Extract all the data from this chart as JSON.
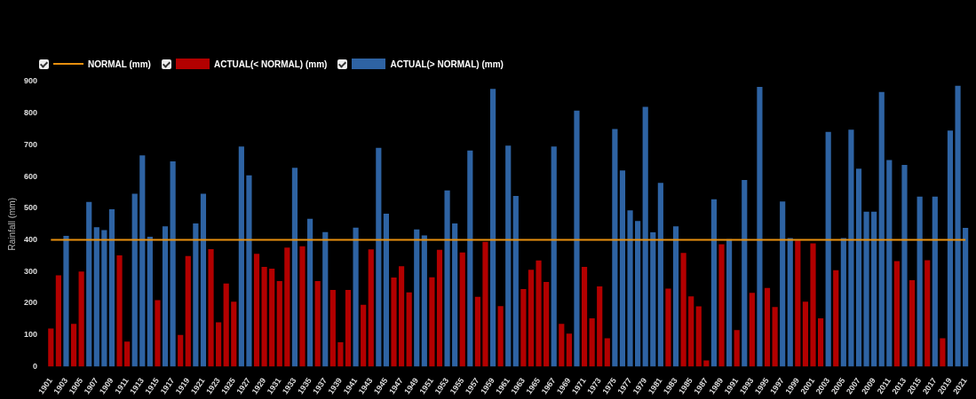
{
  "chart_data": {
    "type": "bar",
    "ylabel": "Rainfall (mm)",
    "categories": [
      "1901",
      null,
      "1903",
      null,
      "1905",
      null,
      "1907",
      null,
      "1909",
      null,
      "1911",
      null,
      "1913",
      null,
      "1915",
      null,
      "1917",
      null,
      "1919",
      null,
      "1921",
      null,
      "1923",
      null,
      "1925",
      null,
      "1927",
      null,
      "1929",
      null,
      "1931",
      null,
      "1933",
      null,
      "1935",
      null,
      "1937",
      null,
      "1939",
      null,
      "1941",
      null,
      "1943",
      null,
      "1945",
      null,
      "1947",
      null,
      "1949",
      null,
      "1951",
      null,
      "1953",
      null,
      "1955",
      null,
      "1957",
      null,
      "1959",
      null,
      "1961",
      null,
      "1963",
      null,
      "1965",
      null,
      "1967",
      null,
      "1969",
      null,
      "1971",
      null,
      "1973",
      null,
      "1975",
      null,
      "1977",
      null,
      "1979",
      null,
      "1981",
      null,
      "1983",
      null,
      "1985",
      null,
      "1987",
      null,
      "1989",
      null,
      "1991",
      null,
      "1993",
      null,
      "1995",
      null,
      "1997",
      null,
      "1999",
      null,
      "2001",
      null,
      "2003",
      null,
      "2005",
      null,
      "2007",
      null,
      "2009",
      null,
      "2011",
      null,
      "2013",
      null,
      "2015",
      null,
      "2017",
      null,
      "2019",
      null,
      "2021"
    ],
    "series": [
      {
        "name": "NORMAL (mm)",
        "type": "line",
        "color": "#e8900f",
        "values": [
          400,
          400,
          400,
          400,
          400,
          400,
          400,
          400,
          400,
          400,
          400,
          400,
          400,
          400,
          400,
          400,
          400,
          400,
          400,
          400,
          400,
          400,
          400,
          400,
          400,
          400,
          400,
          400,
          400,
          400,
          400,
          400,
          400,
          400,
          400,
          400,
          400,
          400,
          400,
          400,
          400,
          400,
          400,
          400,
          400,
          400,
          400,
          400,
          400,
          400,
          400,
          400,
          400,
          400,
          400,
          400,
          400,
          400,
          400,
          400,
          400,
          400,
          400,
          400,
          400,
          400,
          400,
          400,
          400,
          400,
          400,
          400,
          400,
          400,
          400,
          400,
          400,
          400,
          400,
          400,
          400,
          400,
          400,
          400,
          400,
          400,
          400,
          400,
          400,
          400,
          400,
          400,
          400,
          400,
          400,
          400,
          400,
          400,
          400,
          400,
          400,
          400,
          400,
          400,
          400,
          400,
          400,
          400,
          400,
          400,
          400,
          400,
          400,
          400,
          400,
          400,
          400,
          400,
          400,
          400,
          400
        ]
      },
      {
        "name": "ACTUAL(< NORMAL) (mm)",
        "color": "#b30000",
        "values": [
          120,
          288,
          null,
          135,
          300,
          null,
          null,
          null,
          null,
          351,
          79,
          null,
          null,
          null,
          210,
          null,
          null,
          100,
          349,
          null,
          null,
          371,
          140,
          262,
          205,
          null,
          null,
          356,
          315,
          309,
          270,
          376,
          null,
          380,
          null,
          270,
          null,
          242,
          77,
          242,
          null,
          195,
          370,
          null,
          null,
          281,
          317,
          234,
          null,
          null,
          282,
          369,
          null,
          null,
          360,
          null,
          220,
          394,
          null,
          191,
          null,
          null,
          245,
          306,
          335,
          267,
          null,
          135,
          104,
          null,
          315,
          152,
          253,
          89,
          null,
          null,
          null,
          null,
          null,
          null,
          null,
          246,
          null,
          359,
          222,
          190,
          19,
          null,
          386,
          null,
          115,
          null,
          233,
          null,
          248,
          188,
          null,
          null,
          398,
          205,
          389,
          152,
          null,
          304,
          null,
          null,
          null,
          null,
          null,
          null,
          null,
          333,
          null,
          273,
          null,
          336,
          null,
          89,
          null,
          null,
          null
        ]
      },
      {
        "name": "ACTUAL(> NORMAL) (mm)",
        "color": "#2e63a3",
        "values": [
          null,
          null,
          413,
          null,
          null,
          520,
          440,
          431,
          497,
          null,
          null,
          546,
          667,
          410,
          null,
          443,
          648,
          null,
          null,
          452,
          546,
          null,
          null,
          null,
          null,
          695,
          604,
          null,
          null,
          null,
          null,
          null,
          628,
          null,
          467,
          null,
          425,
          null,
          null,
          null,
          439,
          null,
          null,
          691,
          483,
          null,
          null,
          null,
          433,
          414,
          null,
          null,
          556,
          452,
          null,
          682,
          null,
          null,
          877,
          null,
          698,
          539,
          null,
          null,
          null,
          null,
          695,
          null,
          null,
          808,
          null,
          null,
          null,
          null,
          750,
          619,
          493,
          460,
          820,
          424,
          580,
          null,
          443,
          null,
          null,
          null,
          null,
          528,
          null,
          402,
          null,
          589,
          null,
          883,
          null,
          null,
          521,
          406,
          null,
          null,
          null,
          null,
          741,
          null,
          406,
          748,
          625,
          489,
          489,
          867,
          652,
          null,
          637,
          null,
          537,
          null,
          537,
          null,
          745,
          887,
          438
        ]
      }
    ],
    "ylim": [
      0,
      900
    ],
    "yticks": [
      0,
      100,
      200,
      300,
      400,
      500,
      600,
      700,
      800,
      900
    ],
    "legend": "top left",
    "marker": "none"
  }
}
